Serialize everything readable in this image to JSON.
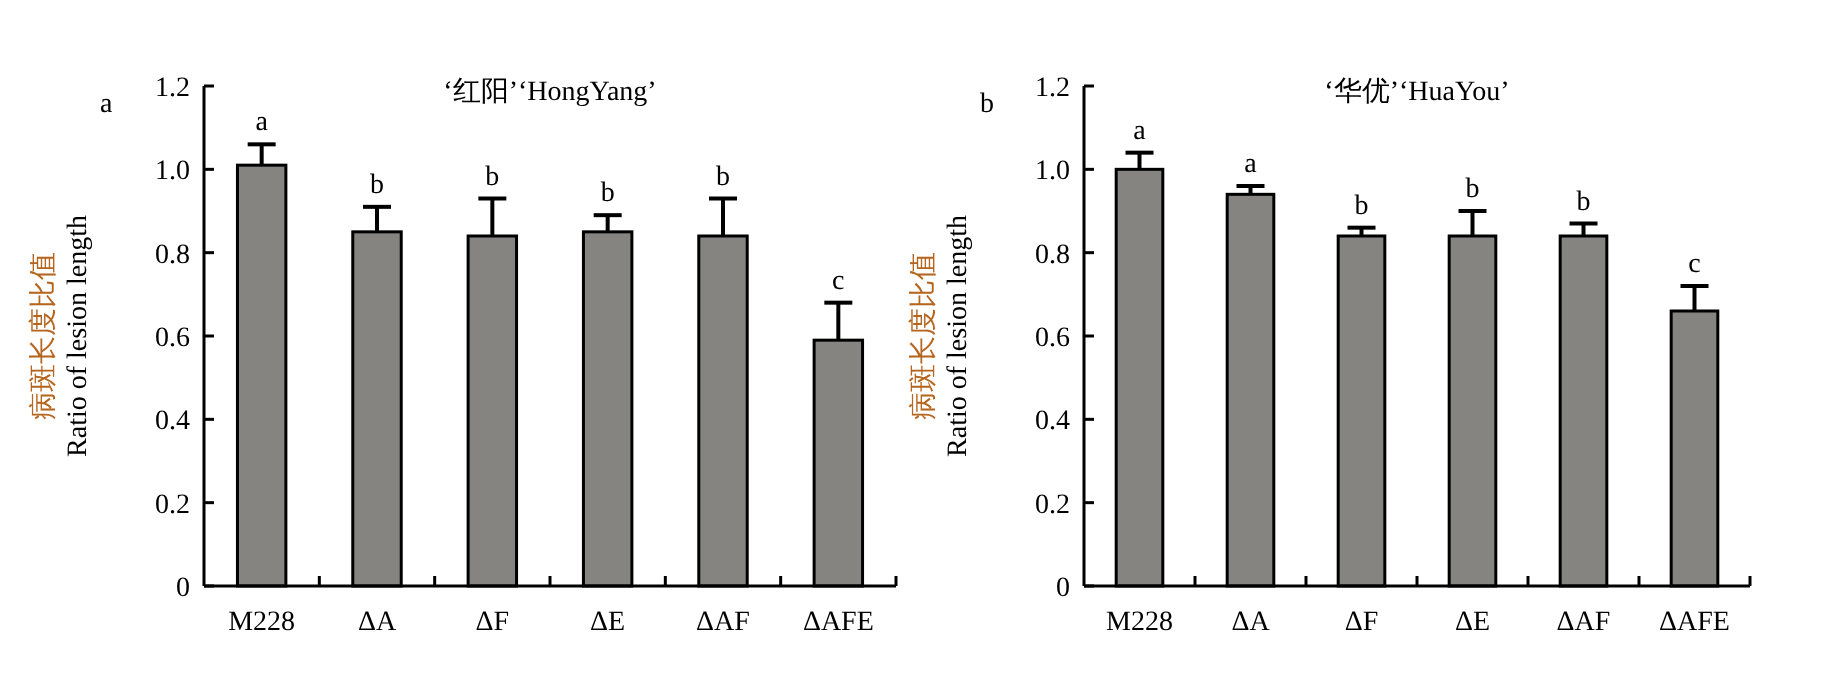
{
  "chart_data": [
    {
      "type": "bar",
      "title": "‘红阳’‘HongYang’",
      "ylabel": "病斑长度比值\nRatio of lesion length",
      "categories": [
        "M228",
        "ΔA",
        "ΔF",
        "ΔE",
        "ΔAF",
        "ΔAFE"
      ],
      "values": [
        1.01,
        0.85,
        0.84,
        0.85,
        0.84,
        0.59
      ],
      "color": "#858480",
      "errors": [
        [
          1.01,
          1.06
        ],
        [
          0.85,
          0.91
        ],
        [
          0.84,
          0.93
        ],
        [
          0.85,
          0.89
        ],
        [
          0.84,
          0.93
        ],
        [
          0.59,
          0.68
        ]
      ],
      "ylim": [
        0,
        1.2
      ],
      "yticks": [
        0,
        0.2,
        0.4,
        0.6,
        0.8,
        {
          "value": 1,
          "label": "1.0"
        },
        1.2
      ],
      "grid": false,
      "annotations": [
        "a",
        {
          "text": "a",
          "x": "M228",
          "y": 1.06
        },
        {
          "text": "b",
          "x": "ΔA",
          "y": 0.91
        },
        {
          "text": "b",
          "x": "ΔF",
          "y": 0.93
        },
        {
          "text": "b",
          "x": "ΔE",
          "y": 0.89
        },
        {
          "text": "b",
          "x": "ΔAF",
          "y": 0.93
        },
        {
          "text": "c",
          "x": "ΔAFE",
          "y": 0.68
        }
      ]
    },
    {
      "type": "bar",
      "title": "‘华优’‘HuaYou’",
      "ylabel": "病斑长度比值\nRatio of lesion length",
      "categories": [
        "M228",
        "ΔA",
        "ΔF",
        "ΔE",
        "ΔAF",
        "ΔAFE"
      ],
      "values": [
        1.0,
        0.94,
        0.84,
        0.84,
        0.84,
        0.66
      ],
      "color": "#858480",
      "errors": [
        [
          1.0,
          1.04
        ],
        [
          0.94,
          0.96
        ],
        [
          0.84,
          0.86
        ],
        [
          0.84,
          0.9
        ],
        [
          0.84,
          0.87
        ],
        [
          0.66,
          0.72
        ]
      ],
      "ylim": [
        0,
        1.2
      ],
      "yticks": [
        0,
        0.2,
        0.4,
        0.6,
        0.8,
        {
          "value": 1,
          "label": "1.0"
        },
        1.2
      ],
      "grid": false,
      "annotations": [
        "b",
        {
          "text": "a",
          "x": "M228",
          "y": 1.04
        },
        {
          "text": "a",
          "x": "ΔA",
          "y": 0.96
        },
        {
          "text": "b",
          "x": "ΔF",
          "y": 0.86
        },
        {
          "text": "b",
          "x": "ΔE",
          "y": 0.9
        },
        {
          "text": "b",
          "x": "ΔAF",
          "y": 0.87
        },
        {
          "text": "c",
          "x": "ΔAFE",
          "y": 0.72
        }
      ]
    }
  ]
}
